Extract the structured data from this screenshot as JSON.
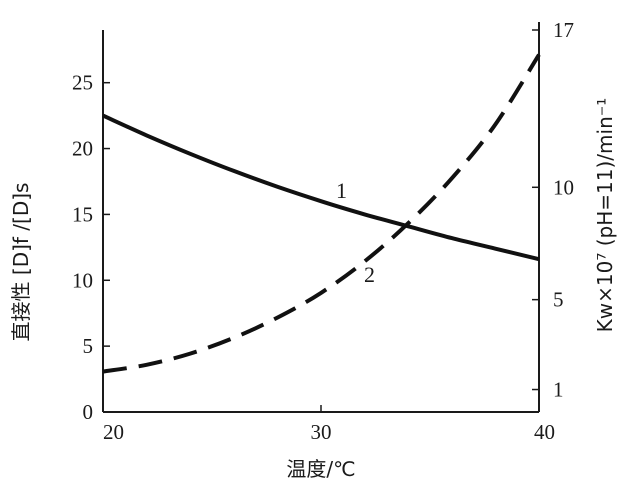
{
  "chart_data": {
    "type": "line",
    "xlabel": "温度/℃",
    "ylabel_left": "直接性 [D]f /[D]s",
    "ylabel_right": "Kw×10⁷ (pH=11)/min⁻¹",
    "xlim": [
      20,
      40
    ],
    "ylim_left": [
      0,
      29
    ],
    "ylim_right": [
      0,
      17
    ],
    "x_ticks": [
      "20",
      "30",
      "40"
    ],
    "y_left_ticks": [
      "0",
      "5",
      "10",
      "15",
      "20",
      "25"
    ],
    "y_right_ticks": [
      "1",
      "5",
      "10",
      "17"
    ],
    "grid": false,
    "legend": "none",
    "series": [
      {
        "name": "1",
        "axis": "left",
        "style": "solid",
        "x": [
          20,
          22,
          24,
          26,
          28,
          30,
          32,
          34,
          36,
          38,
          40
        ],
        "values": [
          22.5,
          21.0,
          19.6,
          18.3,
          17.1,
          16.0,
          15.0,
          14.1,
          13.2,
          12.4,
          11.6
        ]
      },
      {
        "name": "2",
        "axis": "right",
        "style": "dashed",
        "x": [
          20,
          22,
          24,
          26,
          28,
          30,
          32,
          34,
          36,
          38,
          40
        ],
        "values": [
          1.8,
          2.1,
          2.6,
          3.3,
          4.2,
          5.3,
          6.7,
          8.4,
          10.4,
          12.8,
          15.9
        ]
      }
    ],
    "curve_labels": [
      "1",
      "2"
    ]
  }
}
